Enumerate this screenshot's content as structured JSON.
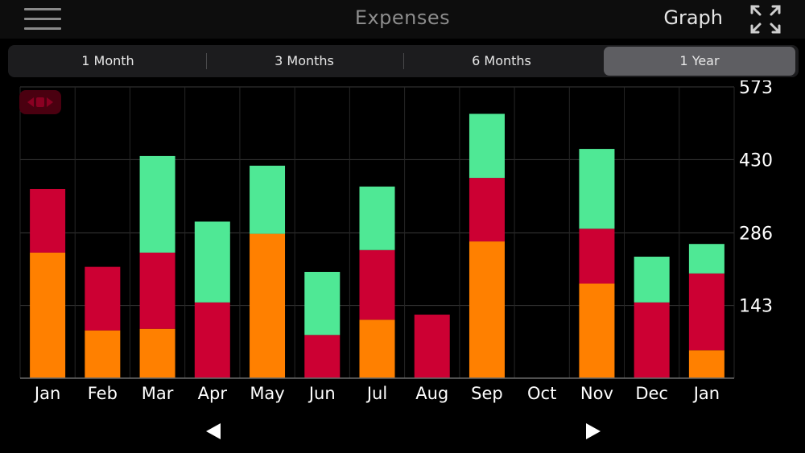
{
  "header": {
    "title": "Expenses",
    "mode_label": "Graph",
    "menu_icon": "hamburger-menu-icon",
    "expand_icon": "expand-arrows-icon"
  },
  "tabs": [
    {
      "label": "1 Month",
      "active": false
    },
    {
      "label": "3 Months",
      "active": false
    },
    {
      "label": "6 Months",
      "active": false
    },
    {
      "label": "1 Year",
      "active": true
    }
  ],
  "colors": {
    "orange": "#ff8000",
    "red": "#cc0033",
    "green": "#4fe895",
    "grid": "#3a3a3a"
  },
  "chart_data": {
    "type": "bar",
    "stacked": true,
    "categories": [
      "Jan",
      "Feb",
      "Mar",
      "Apr",
      "May",
      "Jun",
      "Jul",
      "Aug",
      "Sep",
      "Oct",
      "Nov",
      "Dec",
      "Jan"
    ],
    "series": [
      {
        "color": "#ff8000",
        "values": [
          247,
          94,
          97,
          0,
          284,
          0,
          115,
          0,
          269,
          0,
          186,
          0,
          55
        ]
      },
      {
        "color": "#cc0033",
        "values": [
          125,
          125,
          150,
          149,
          0,
          85,
          137,
          125,
          125,
          0,
          108,
          149,
          151
        ]
      },
      {
        "color": "#4fe895",
        "values": [
          0,
          0,
          190,
          159,
          134,
          124,
          125,
          0,
          126,
          0,
          157,
          90,
          58
        ]
      }
    ],
    "y_ticks": [
      "573",
      "430",
      "286",
      "143"
    ],
    "ylim": [
      0,
      573
    ],
    "y_axis_position": "right",
    "grid": true
  }
}
